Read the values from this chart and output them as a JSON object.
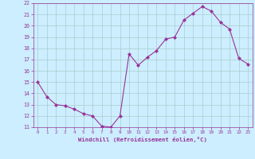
{
  "x": [
    0,
    1,
    2,
    3,
    4,
    5,
    6,
    7,
    8,
    9,
    10,
    11,
    12,
    13,
    14,
    15,
    16,
    17,
    18,
    19,
    20,
    21,
    22,
    23
  ],
  "y": [
    15.0,
    13.7,
    13.0,
    12.9,
    12.6,
    12.2,
    12.0,
    11.1,
    11.0,
    12.0,
    17.5,
    16.5,
    17.2,
    17.8,
    18.8,
    19.0,
    20.5,
    21.1,
    21.7,
    21.3,
    20.3,
    19.7,
    17.1,
    16.6
  ],
  "line_color": "#993399",
  "marker": "D",
  "marker_size": 2.0,
  "bg_color": "#cceeff",
  "grid_color": "#aacccc",
  "tick_color": "#993399",
  "label_color": "#993399",
  "xlabel": "Windchill (Refroidissement éolien,°C)",
  "xlim": [
    -0.5,
    23.5
  ],
  "ylim": [
    11,
    22
  ],
  "yticks": [
    11,
    12,
    13,
    14,
    15,
    16,
    17,
    18,
    19,
    20,
    21,
    22
  ],
  "xticks": [
    0,
    1,
    2,
    3,
    4,
    5,
    6,
    7,
    8,
    9,
    10,
    11,
    12,
    13,
    14,
    15,
    16,
    17,
    18,
    19,
    20,
    21,
    22,
    23
  ],
  "xtick_fontsize": 4.2,
  "ytick_fontsize": 4.8,
  "xlabel_fontsize": 5.2
}
